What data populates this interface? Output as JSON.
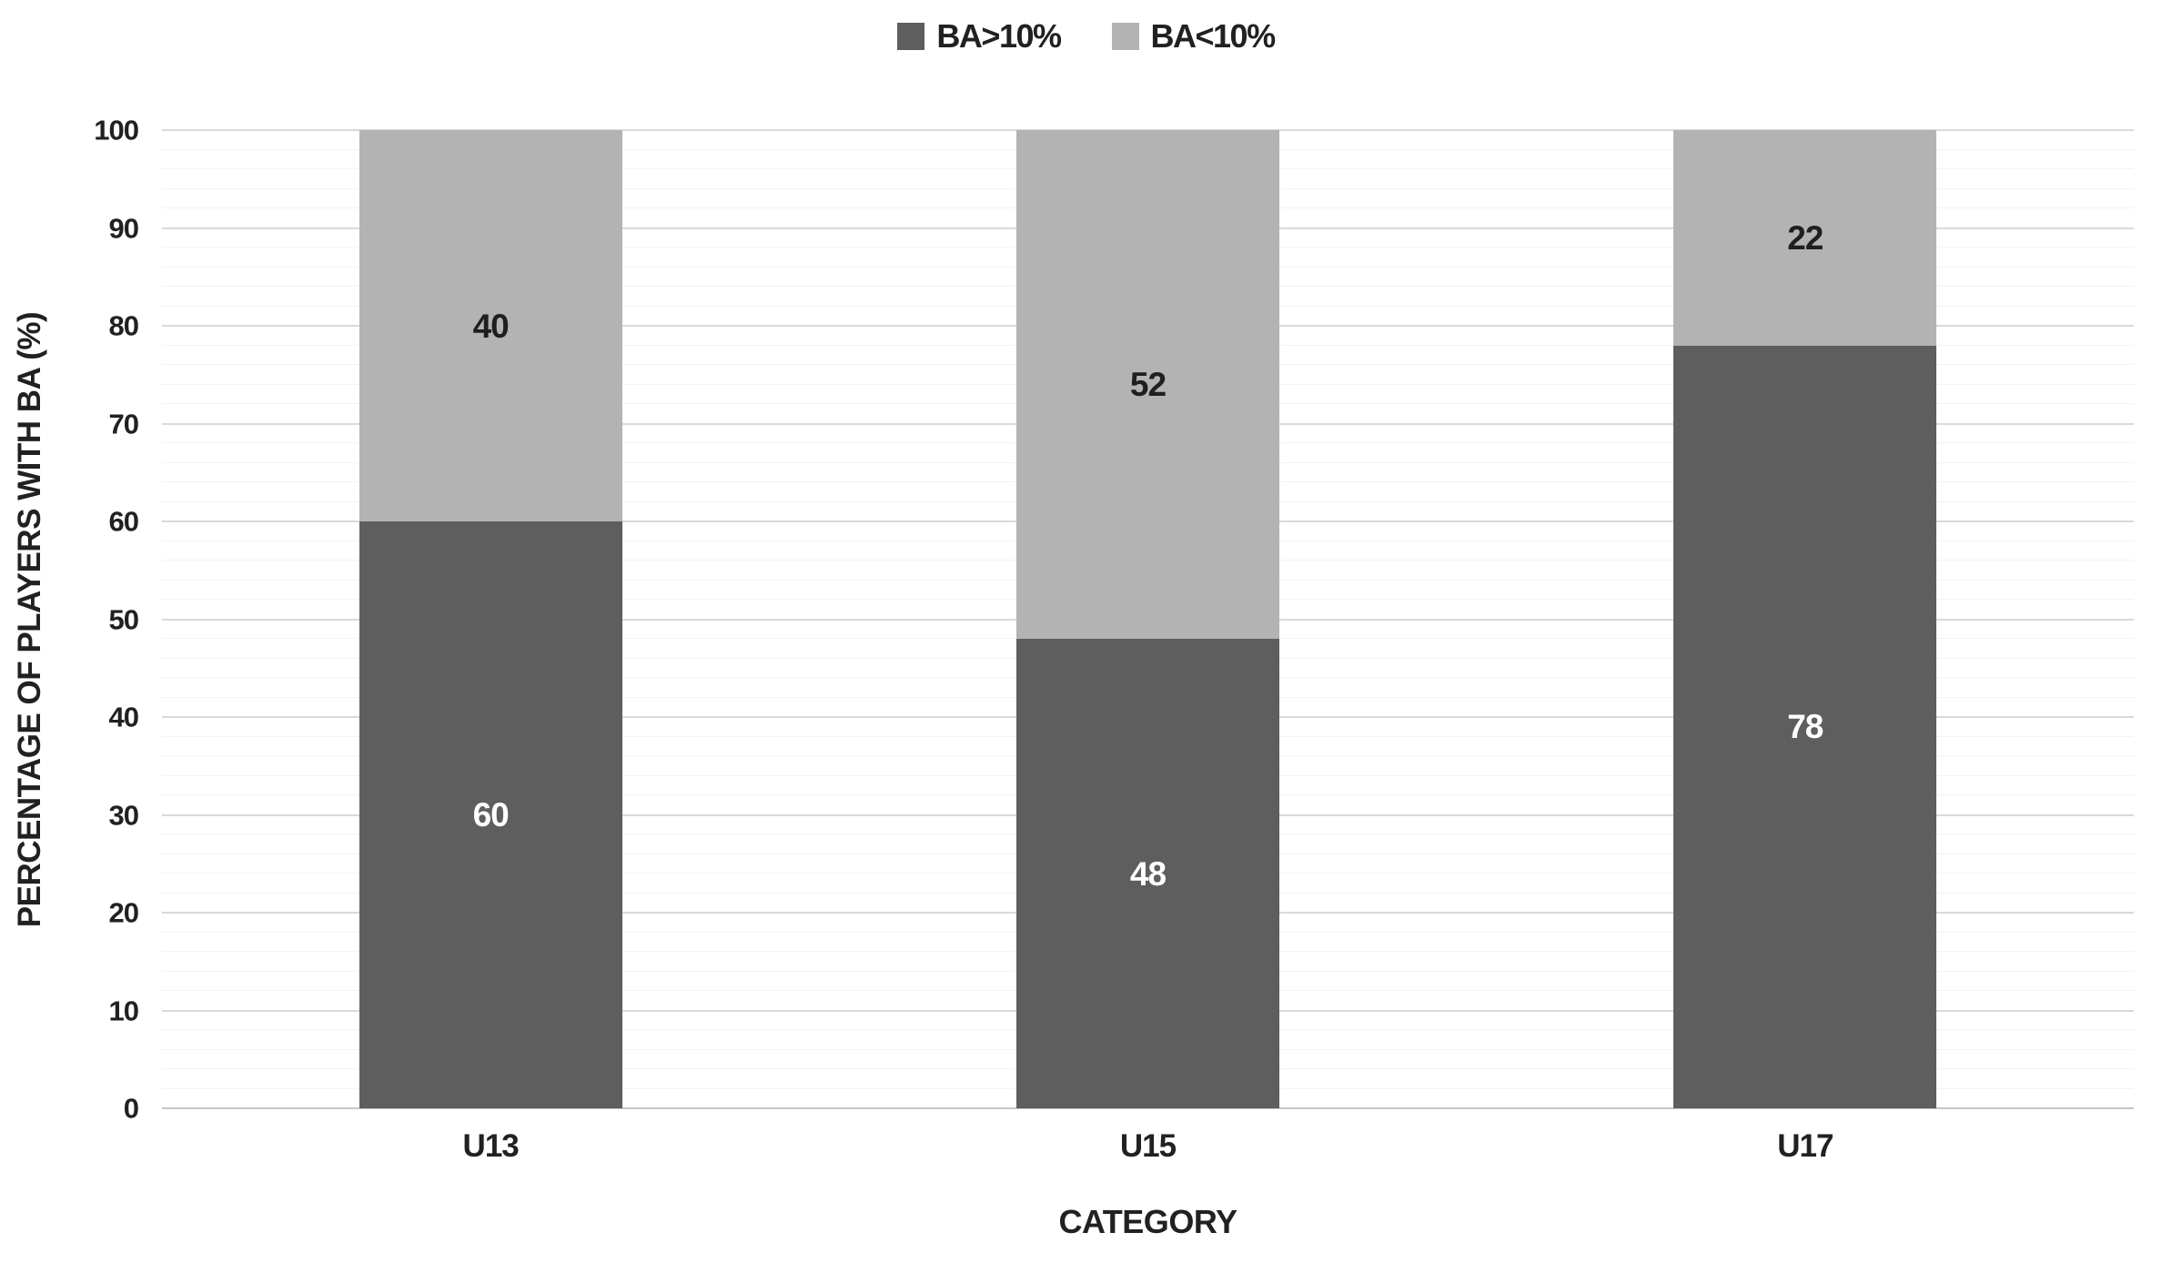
{
  "chart_data": {
    "type": "bar",
    "variant": "stacked-column",
    "title": "",
    "categories": [
      "U13",
      "U15",
      "U17"
    ],
    "series": [
      {
        "name": "BA>10%",
        "color": "#5e5e5e",
        "label_color": "#ffffff",
        "values": [
          60,
          48,
          78
        ]
      },
      {
        "name": "BA<10%",
        "color": "#b3b3b3",
        "label_color": "#1f1f1f",
        "values": [
          40,
          52,
          22
        ]
      }
    ],
    "stack_totals": [
      100,
      100,
      100
    ],
    "xlabel": "CATEGORY",
    "ylabel": "PERCENTAGE OF PLAYERS WITH BA (%)",
    "ylim": [
      0,
      100
    ],
    "y_major_step": 10,
    "y_minor_step": 2,
    "yticks": [
      "0",
      "10",
      "20",
      "30",
      "40",
      "50",
      "60",
      "70",
      "80",
      "90",
      "100"
    ],
    "legend_position": "top-center",
    "grid": "horizontal-major-and-minor",
    "bar_width_fraction": 0.4,
    "colors": {
      "background": "#ffffff",
      "text": "#212121",
      "major_gridline": "#d9d9d9",
      "minor_gridline": "#f3f3f3",
      "axis_line": "#c6c6c6"
    }
  }
}
